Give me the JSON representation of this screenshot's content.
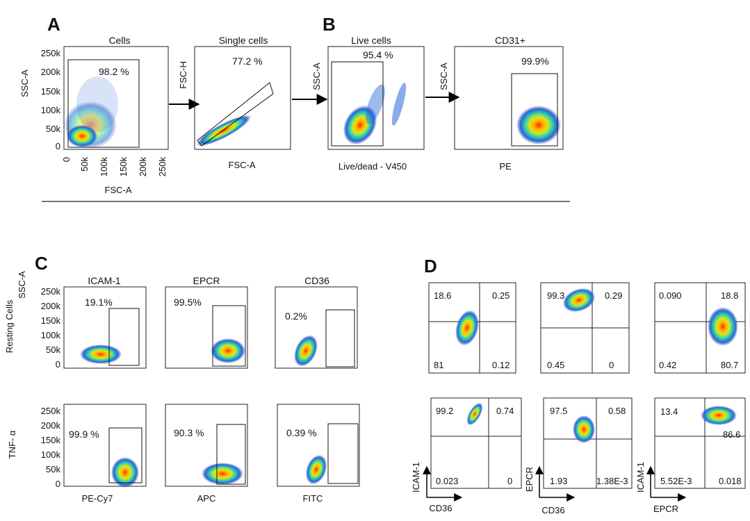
{
  "panel_labels": {
    "A": "A",
    "B": "B",
    "C": "C",
    "D": "D"
  },
  "plots": [
    {
      "id": "a1",
      "title": "Cells",
      "gate_value": "98.2 %",
      "x_label": "FSC-A",
      "y_label": "SSC-A",
      "y_ticks": [
        "250k",
        "200k",
        "150k",
        "100k",
        "50k",
        "0"
      ],
      "x_ticks": [
        "0",
        "50k",
        "100k",
        "150k",
        "200k",
        "250k"
      ]
    },
    {
      "id": "a2",
      "title": "Single cells",
      "gate_value": "77.2 %",
      "x_label": "FSC-A",
      "y_label": "FSC-H"
    },
    {
      "id": "b1",
      "title": "Live cells",
      "gate_value": "95.4 %",
      "x_label": "Live/dead - V450",
      "y_label": "SSC-A"
    },
    {
      "id": "b2",
      "title": "CD31+",
      "gate_value": "99.9%",
      "x_label": "PE",
      "y_label": "SSC-A"
    },
    {
      "id": "c1",
      "title": "ICAM-1",
      "gate_value": "19.1%",
      "row_label": "Resting Cells",
      "y_label": "SSC-A",
      "y_ticks": [
        "250k",
        "200k",
        "150k",
        "100k",
        "50k",
        "0"
      ]
    },
    {
      "id": "c2",
      "title": "EPCR",
      "gate_value": "99.5%"
    },
    {
      "id": "c3",
      "title": "CD36",
      "gate_value": "0.2%"
    },
    {
      "id": "c4",
      "gate_value": "99.9 %",
      "x_label": "PE-Cy7",
      "row_label": "TNF- α",
      "y_ticks": [
        "250k",
        "200k",
        "150k",
        "100k",
        "50k",
        "0"
      ]
    },
    {
      "id": "c5",
      "gate_value": "90.3 %",
      "x_label": "APC"
    },
    {
      "id": "c6",
      "gate_value": "0.39 %",
      "x_label": "FITC"
    }
  ],
  "quadrants": [
    {
      "id": "d1",
      "tl": "18.6",
      "tr": "0.25",
      "bl": "81",
      "br": "0.12"
    },
    {
      "id": "d2",
      "tl": "99.3",
      "tr": "0.29",
      "bl": "0.45",
      "br": "0"
    },
    {
      "id": "d3",
      "tl": "0.090",
      "tr": "18.8",
      "bl": "0.42",
      "br": "80.7"
    },
    {
      "id": "d4",
      "tl": "99.2",
      "tr": "0.74",
      "bl": "0.023",
      "br": "0",
      "x_label": "CD36",
      "y_label": "ICAM-1"
    },
    {
      "id": "d5",
      "tl": "97.5",
      "tr": "0.58",
      "bl": "1.93",
      "br": "1.38E-3",
      "x_label": "CD36",
      "y_label": "EPCR"
    },
    {
      "id": "d6",
      "tl": "13.4",
      "tr": "86.6",
      "bl": "5.52E-3",
      "br": "0.018",
      "x_label": "EPCR",
      "y_label": "ICAM-1"
    }
  ],
  "colors": {
    "axis": "#222222",
    "density_low": "#1f3fb3",
    "density_mid": "#22c5c5",
    "density_high": "#ff2a00",
    "arrow": "#000000"
  }
}
